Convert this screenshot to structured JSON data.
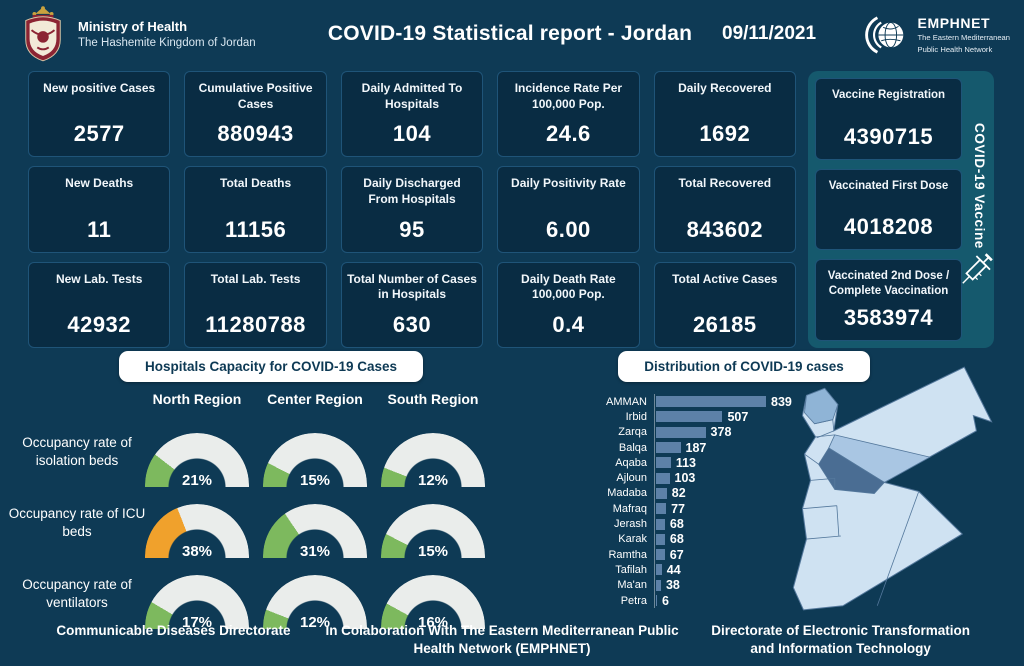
{
  "header": {
    "ministry_name": "Ministry of Health",
    "kingdom_name": "The Hashemite Kingdom of Jordan",
    "title": "COVID-19 Statistical report - Jordan",
    "date": "09/11/2021",
    "emphnet_name": "EMPHNET",
    "emphnet_sub1": "The Eastern Mediterranean",
    "emphnet_sub2": "Public Health Network"
  },
  "stats": {
    "cards": [
      {
        "label": "New positive Cases",
        "value": "2577"
      },
      {
        "label": "Cumulative Positive Cases",
        "value": "880943"
      },
      {
        "label": "Daily Admitted To Hospitals",
        "value": "104"
      },
      {
        "label": "Incidence Rate Per 100,000 Pop.",
        "value": "24.6"
      },
      {
        "label": "Daily Recovered",
        "value": "1692"
      },
      {
        "label": "New Deaths",
        "value": "11"
      },
      {
        "label": "Total Deaths",
        "value": "11156"
      },
      {
        "label": "Daily Discharged From Hospitals",
        "value": "95"
      },
      {
        "label": "Daily Positivity Rate",
        "value": "6.00"
      },
      {
        "label": "Total Recovered",
        "value": "843602"
      },
      {
        "label": "New Lab. Tests",
        "value": "42932"
      },
      {
        "label": "Total Lab. Tests",
        "value": "11280788"
      },
      {
        "label": "Total Number of Cases in Hospitals",
        "value": "630"
      },
      {
        "label": "Daily Death Rate 100,000 Pop.",
        "value": "0.4"
      },
      {
        "label": "Total Active Cases",
        "value": "26185"
      }
    ]
  },
  "vaccine": {
    "strip_label": "COVID-19 Vaccine",
    "panel_color": "#15596d",
    "cards": [
      {
        "label": "Vaccine Registration",
        "value": "4390715"
      },
      {
        "label": "Vaccinated First Dose",
        "value": "4018208"
      },
      {
        "label": "Vaccinated 2nd Dose / Complete Vaccination",
        "value": "3583974"
      }
    ]
  },
  "chart_data": [
    {
      "type": "gauge",
      "title": "Hospitals Capacity for COVID-19 Cases",
      "columns": [
        "North Region",
        "Center Region",
        "South Region"
      ],
      "series": [
        {
          "name": "Occupancy rate of isolation beds",
          "values": [
            21,
            15,
            12
          ]
        },
        {
          "name": "Occupancy rate of ICU beds",
          "values": [
            38,
            31,
            15
          ]
        },
        {
          "name": "Occupancy rate of ventilators",
          "values": [
            17,
            12,
            16
          ]
        }
      ],
      "unit": "%",
      "range": [
        0,
        100
      ],
      "warning_threshold": 35,
      "colors": {
        "normal": "#7db95e",
        "warning": "#f0a12c",
        "track": "#eaedeb"
      }
    },
    {
      "type": "bar",
      "title": "Distribution of COVID-19 cases",
      "orientation": "horizontal",
      "categories": [
        "AMMAN",
        "Irbid",
        "Zarqa",
        "Balqa",
        "Aqaba",
        "Ajloun",
        "Madaba",
        "Mafraq",
        "Jerash",
        "Karak",
        "Ramtha",
        "Tafilah",
        "Ma'an",
        "Petra"
      ],
      "values": [
        839,
        507,
        378,
        187,
        113,
        103,
        82,
        77,
        68,
        68,
        67,
        44,
        38,
        6
      ],
      "xlim": [
        0,
        900
      ],
      "bar_color": "#5d81a8",
      "value_labels": true,
      "legend": "none",
      "grid": false
    }
  ],
  "map": {
    "name": "jordan-governorates-choropleth",
    "region_colors": {
      "base": "#cfe2f2",
      "irbid": "#8fb4d6",
      "zarqa": "#a9c6e3",
      "amman": "#4a6d93"
    },
    "border_color": "#54789c"
  },
  "footer": {
    "left": "Communicable Diseases Directorate",
    "center_line1": "In Colaboration With The Eastern Mediterranean Public",
    "center_line2": "Health Network (EMPHNET)",
    "right_line1": "Directorate of Electronic Transformation",
    "right_line2": "and Information Technology"
  },
  "theme": {
    "background": "#0e3a55",
    "card_bg": "#092c43",
    "card_border": "#1f5478",
    "accent_teal": "#15596d",
    "pill_bg": "#ffffff",
    "pill_text": "#0d3954",
    "bar_color": "#5d81a8"
  }
}
